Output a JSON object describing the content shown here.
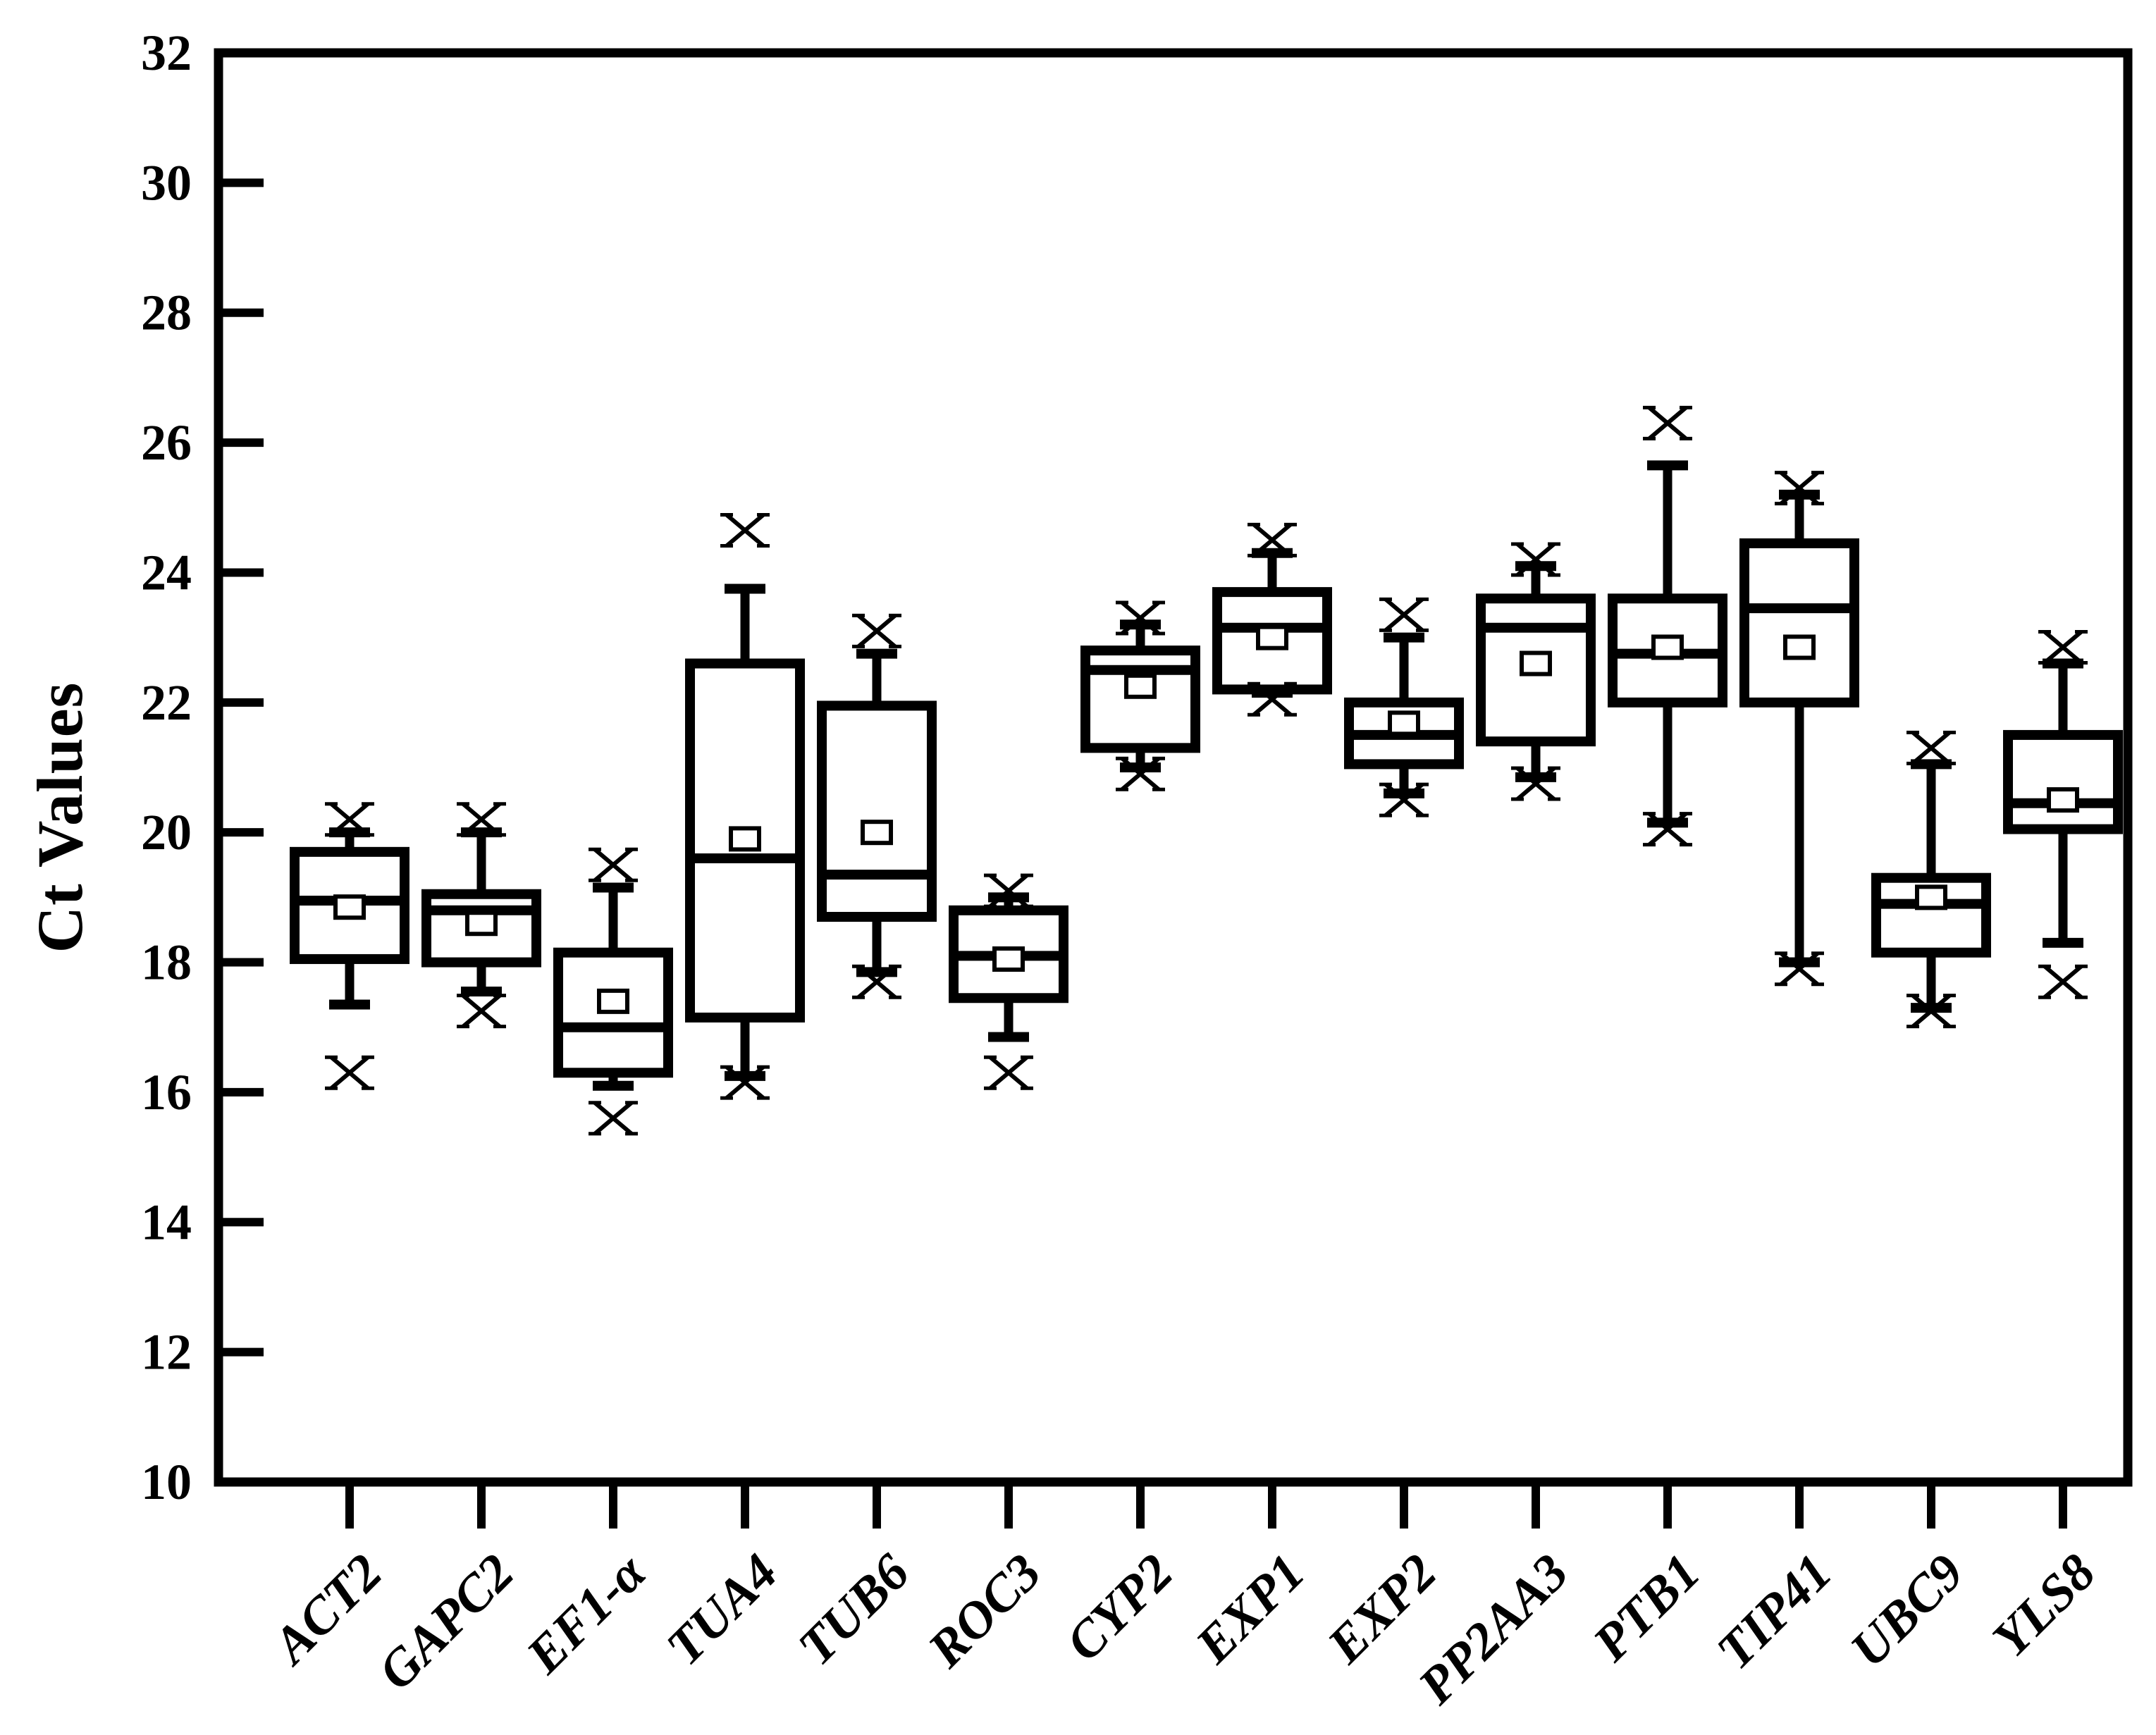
{
  "figure": {
    "background": "#ffffff",
    "ink_color": "#000000"
  },
  "chart_data": {
    "type": "box",
    "title": "",
    "xlabel": "",
    "ylabel": "Ct Values",
    "ylim": [
      10,
      32
    ],
    "yticks": [
      10,
      12,
      14,
      16,
      18,
      20,
      22,
      24,
      26,
      28,
      30,
      32
    ],
    "grid": false,
    "legend": "none",
    "frame": "full-box",
    "categories": [
      "ACT2",
      "GAPC2",
      "EF1-α",
      "TUA4",
      "TUB6",
      "ROC3",
      "CYP2",
      "EXP1",
      "EXP2",
      "PP2AA3",
      "PTB1",
      "TIP41",
      "UBC9",
      "YLS8"
    ],
    "boxes": [
      {
        "label": "ACT2",
        "whisker_low": 17.35,
        "q1": 18.05,
        "median": 18.95,
        "mean": 18.85,
        "q3": 19.7,
        "whisker_high": 20.0,
        "outliers": [
          20.2,
          16.3
        ]
      },
      {
        "label": "GAPC2",
        "whisker_low": 17.55,
        "q1": 18.0,
        "median": 18.8,
        "mean": 18.6,
        "q3": 19.05,
        "whisker_high": 20.0,
        "outliers": [
          20.2,
          17.25
        ]
      },
      {
        "label": "EF1-α",
        "whisker_low": 16.1,
        "q1": 16.3,
        "median": 17.0,
        "mean": 17.4,
        "q3": 18.15,
        "whisker_high": 19.15,
        "outliers": [
          19.5,
          15.6
        ]
      },
      {
        "label": "TUA4",
        "whisker_low": 16.25,
        "q1": 17.15,
        "median": 19.6,
        "mean": 19.9,
        "q3": 22.6,
        "whisker_high": 23.75,
        "outliers": [
          24.65,
          16.15
        ]
      },
      {
        "label": "TUB6",
        "whisker_low": 17.85,
        "q1": 18.7,
        "median": 19.35,
        "mean": 20.0,
        "q3": 21.95,
        "whisker_high": 22.75,
        "outliers": [
          23.1,
          17.7
        ]
      },
      {
        "label": "ROC3",
        "whisker_low": 16.85,
        "q1": 17.45,
        "median": 18.1,
        "mean": 18.05,
        "q3": 18.8,
        "whisker_high": 19.0,
        "outliers": [
          19.1,
          16.3
        ]
      },
      {
        "label": "CYP2",
        "whisker_low": 21.0,
        "q1": 21.3,
        "median": 22.5,
        "mean": 22.25,
        "q3": 22.8,
        "whisker_high": 23.2,
        "outliers": [
          23.3,
          20.9
        ]
      },
      {
        "label": "EXP1",
        "whisker_low": 22.15,
        "q1": 22.2,
        "median": 23.15,
        "mean": 23.0,
        "q3": 23.7,
        "whisker_high": 24.3,
        "outliers": [
          24.5,
          22.05
        ]
      },
      {
        "label": "EXP2",
        "whisker_low": 20.6,
        "q1": 21.05,
        "median": 21.5,
        "mean": 21.68,
        "q3": 22.0,
        "whisker_high": 23.0,
        "outliers": [
          23.35,
          20.5
        ]
      },
      {
        "label": "PP2AA3",
        "whisker_low": 20.85,
        "q1": 21.4,
        "median": 23.15,
        "mean": 22.6,
        "q3": 23.6,
        "whisker_high": 24.1,
        "outliers": [
          24.2,
          20.75
        ]
      },
      {
        "label": "PTB1",
        "whisker_low": 20.15,
        "q1": 22.0,
        "median": 22.75,
        "mean": 22.85,
        "q3": 23.6,
        "whisker_high": 25.65,
        "outliers": [
          26.3,
          20.05
        ]
      },
      {
        "label": "TIP41",
        "whisker_low": 18.0,
        "q1": 22.0,
        "median": 23.45,
        "mean": 22.85,
        "q3": 24.45,
        "whisker_high": 25.2,
        "outliers": [
          25.3,
          17.9
        ]
      },
      {
        "label": "UBC9",
        "whisker_low": 17.3,
        "q1": 18.15,
        "median": 18.9,
        "mean": 19.0,
        "q3": 19.3,
        "whisker_high": 21.05,
        "outliers": [
          21.3,
          17.25
        ]
      },
      {
        "label": "YLS8",
        "whisker_low": 18.3,
        "q1": 20.05,
        "median": 20.45,
        "mean": 20.5,
        "q3": 21.5,
        "whisker_high": 22.6,
        "outliers": [
          22.85,
          17.7
        ]
      }
    ]
  }
}
